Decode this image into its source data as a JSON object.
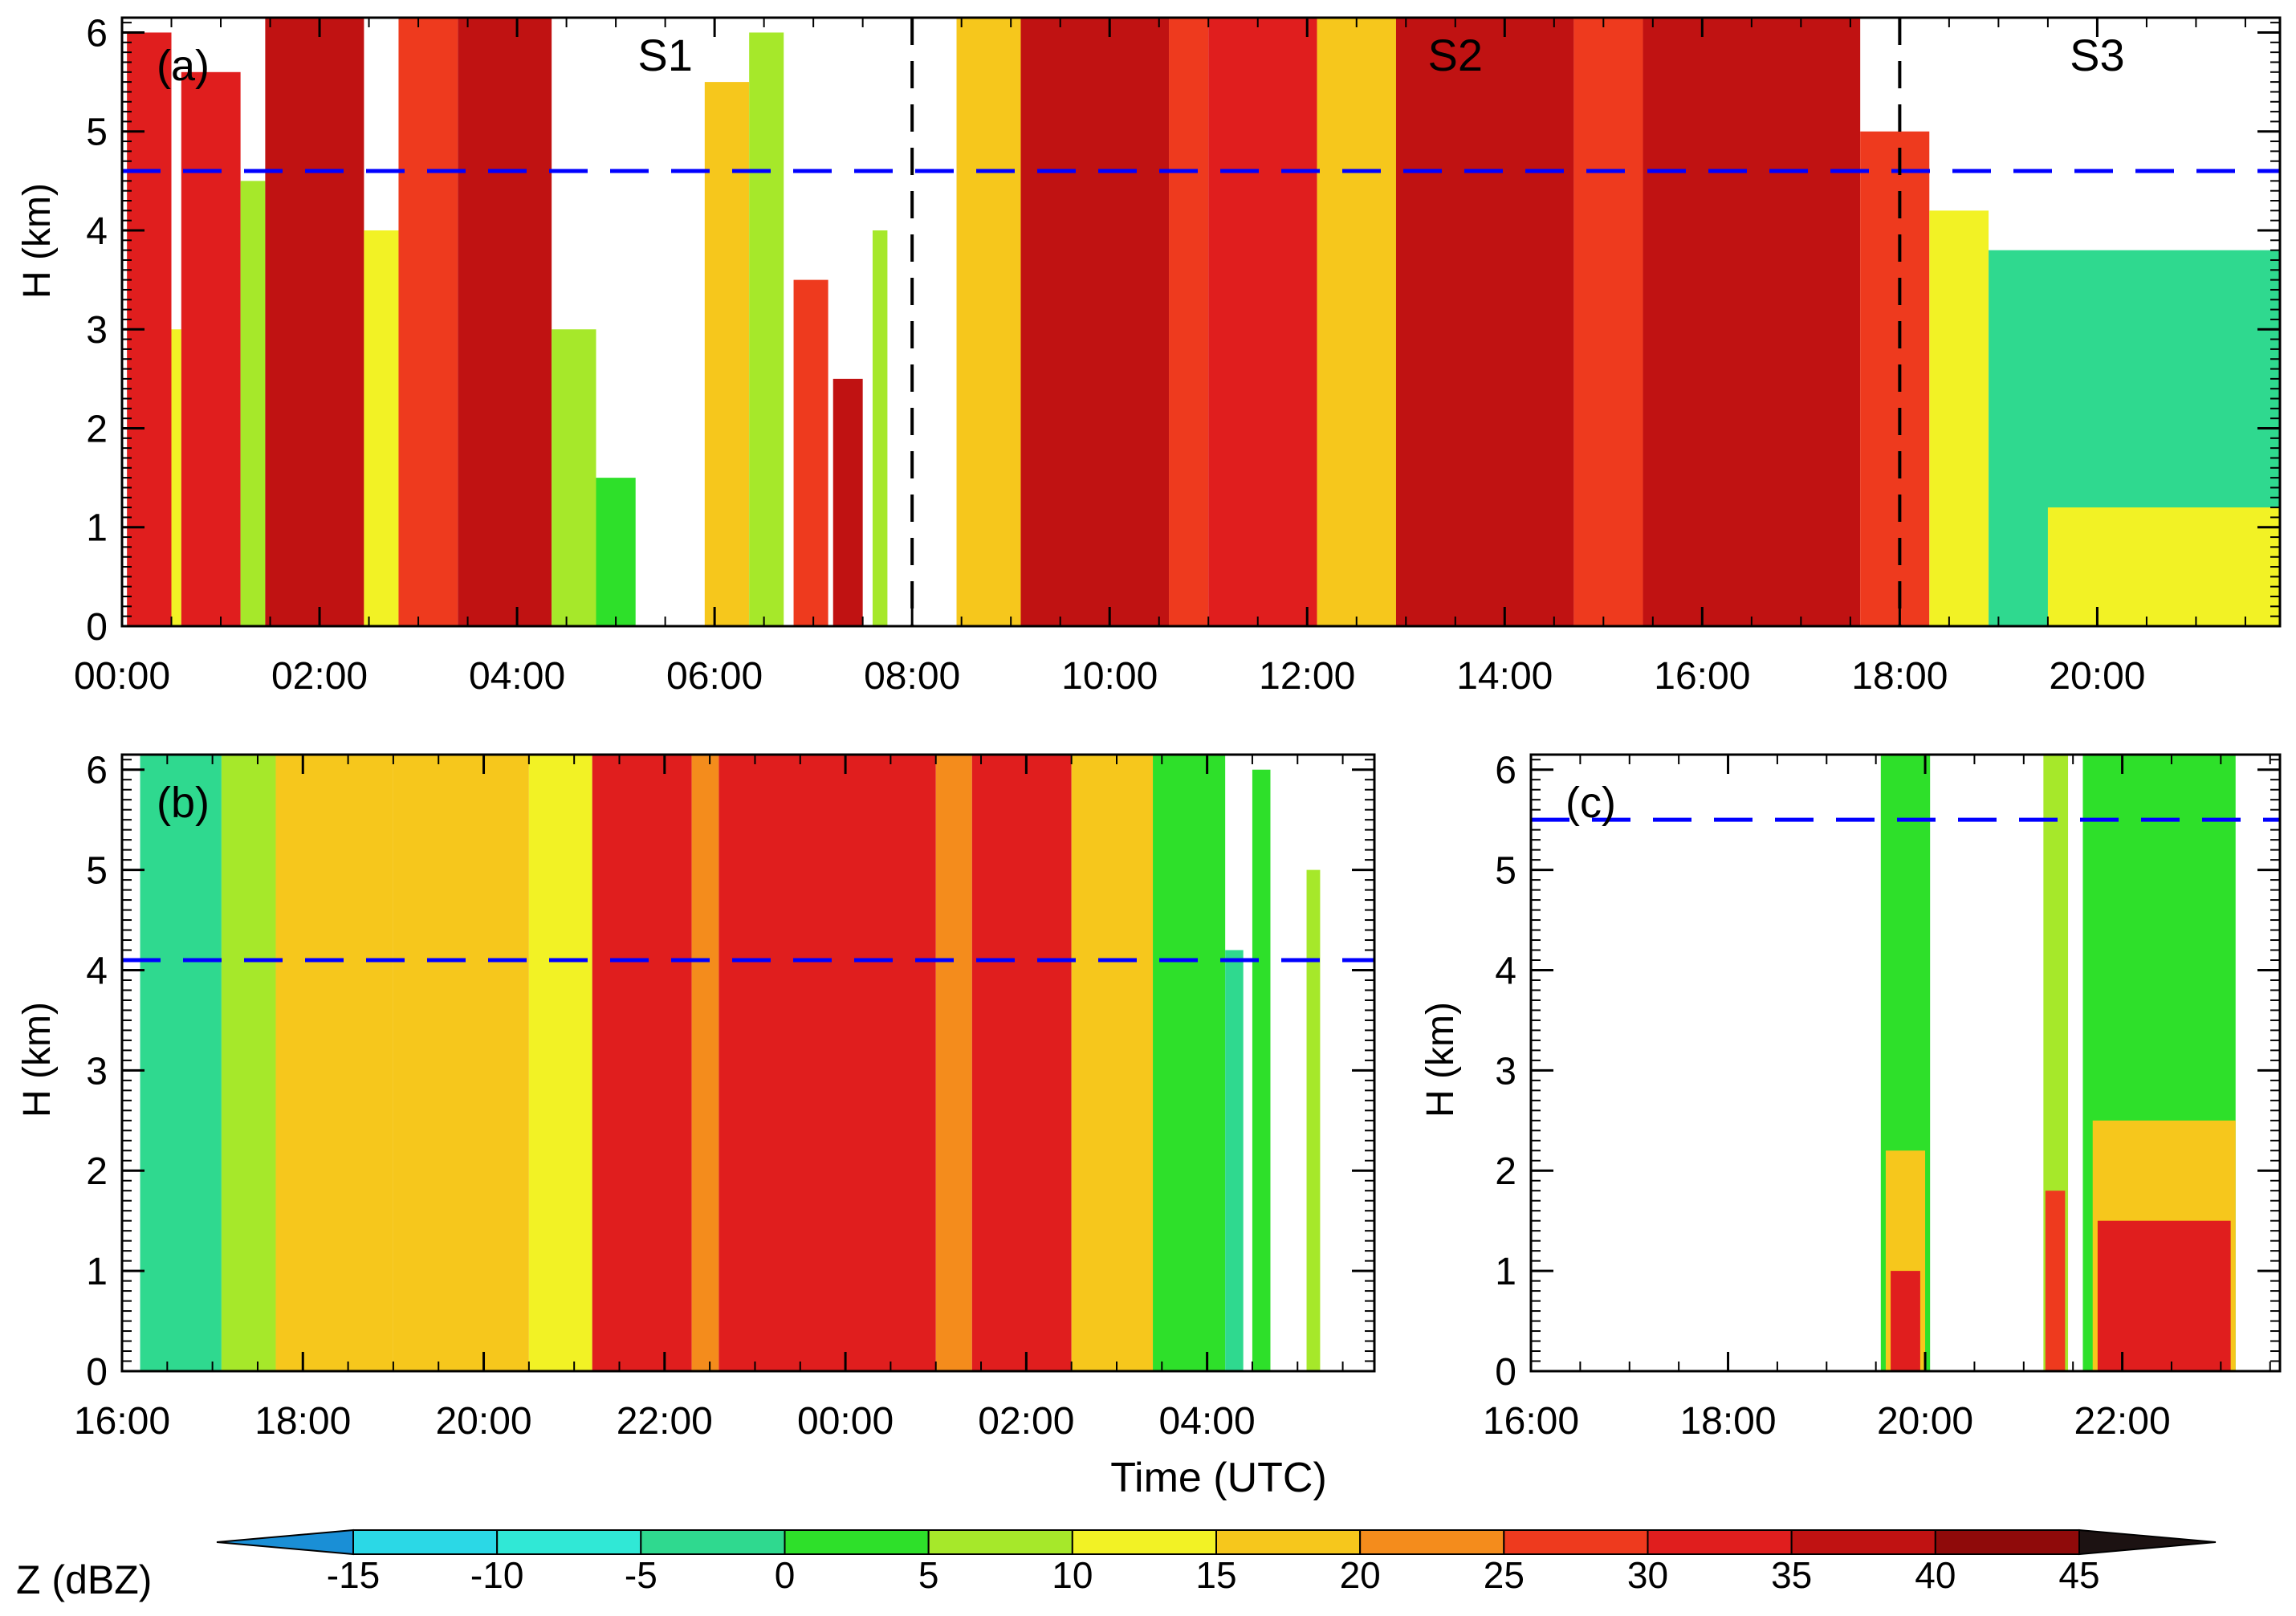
{
  "chart_data": [
    {
      "panel": "a",
      "type": "heatmap",
      "label": "(a)",
      "ylabel": "H (km)",
      "xlabel": "",
      "ylim": [
        0,
        6.15
      ],
      "yticks": [
        0,
        1,
        2,
        3,
        4,
        5,
        6
      ],
      "xlim": [
        0,
        21.85
      ],
      "xticks": [
        0,
        2,
        4,
        6,
        8,
        10,
        12,
        14,
        16,
        18,
        20
      ],
      "xtick_labels": [
        "00:00",
        "02:00",
        "04:00",
        "06:00",
        "08:00",
        "10:00",
        "12:00",
        "14:00",
        "16:00",
        "18:00",
        "20:00"
      ],
      "melting_layer_km": 4.6,
      "stage_dividers_h": [
        8,
        18
      ],
      "stages": [
        {
          "label": "S1",
          "x": 5.5
        },
        {
          "label": "S2",
          "x": 13.5
        },
        {
          "label": "S3",
          "x": 20.0
        }
      ],
      "columns": [
        {
          "t0": 0.05,
          "t1": 0.5,
          "top": 6.0,
          "dbz": 30
        },
        {
          "t0": 0.5,
          "t1": 0.6,
          "top": 3.0,
          "dbz": 10
        },
        {
          "t0": 0.6,
          "t1": 1.2,
          "top": 5.6,
          "dbz": 33
        },
        {
          "t0": 1.2,
          "t1": 1.45,
          "top": 4.5,
          "dbz": 5
        },
        {
          "t0": 1.45,
          "t1": 2.45,
          "top": 6.15,
          "dbz": 35
        },
        {
          "t0": 2.45,
          "t1": 2.8,
          "top": 4.0,
          "dbz": 12
        },
        {
          "t0": 2.8,
          "t1": 3.4,
          "top": 6.15,
          "dbz": 25
        },
        {
          "t0": 3.4,
          "t1": 4.35,
          "top": 6.15,
          "dbz": 35
        },
        {
          "t0": 4.35,
          "t1": 4.8,
          "top": 3.0,
          "dbz": 5
        },
        {
          "t0": 4.8,
          "t1": 5.2,
          "top": 1.5,
          "dbz": 0
        },
        {
          "t0": 5.9,
          "t1": 6.35,
          "top": 5.5,
          "dbz": 15
        },
        {
          "t0": 6.35,
          "t1": 6.7,
          "top": 6.0,
          "dbz": 8
        },
        {
          "t0": 6.8,
          "t1": 7.15,
          "top": 3.5,
          "dbz": 25
        },
        {
          "t0": 7.2,
          "t1": 7.5,
          "top": 2.5,
          "dbz": 35
        },
        {
          "t0": 7.6,
          "t1": 7.75,
          "top": 4.0,
          "dbz": 8
        },
        {
          "t0": 8.45,
          "t1": 9.1,
          "top": 6.15,
          "dbz": 18
        },
        {
          "t0": 9.1,
          "t1": 10.6,
          "top": 6.15,
          "dbz": 36
        },
        {
          "t0": 10.6,
          "t1": 11.0,
          "top": 6.15,
          "dbz": 25
        },
        {
          "t0": 11.0,
          "t1": 12.1,
          "top": 6.15,
          "dbz": 34
        },
        {
          "t0": 12.1,
          "t1": 12.9,
          "top": 6.15,
          "dbz": 18
        },
        {
          "t0": 12.9,
          "t1": 14.7,
          "top": 6.15,
          "dbz": 37
        },
        {
          "t0": 14.7,
          "t1": 15.4,
          "top": 6.15,
          "dbz": 25
        },
        {
          "t0": 15.4,
          "t1": 17.6,
          "top": 6.15,
          "dbz": 38
        },
        {
          "t0": 17.6,
          "t1": 18.3,
          "top": 5.0,
          "dbz": 25
        },
        {
          "t0": 18.3,
          "t1": 18.9,
          "top": 4.2,
          "dbz": 10
        },
        {
          "t0": 18.9,
          "t1": 21.85,
          "top": 3.8,
          "dbz": -5
        },
        {
          "t0": 19.5,
          "t1": 21.85,
          "top": 1.2,
          "dbz": 10
        }
      ]
    },
    {
      "panel": "b",
      "type": "heatmap",
      "label": "(b)",
      "ylabel": "H (km)",
      "xlabel": "Time (UTC)",
      "ylim": [
        0,
        6.15
      ],
      "yticks": [
        0,
        1,
        2,
        3,
        4,
        5,
        6
      ],
      "xlim": [
        16,
        29.85
      ],
      "xticks": [
        16,
        18,
        20,
        22,
        24,
        26,
        28
      ],
      "xtick_labels": [
        "16:00",
        "18:00",
        "20:00",
        "22:00",
        "00:00",
        "02:00",
        "04:00"
      ],
      "melting_layer_km": 4.1,
      "stage_dividers_h": [],
      "stages": [],
      "columns": [
        {
          "t0": 16.2,
          "t1": 17.1,
          "top": 6.15,
          "dbz": -2
        },
        {
          "t0": 17.1,
          "t1": 17.7,
          "top": 6.15,
          "dbz": 5
        },
        {
          "t0": 17.7,
          "t1": 19.0,
          "top": 6.15,
          "dbz": 18
        },
        {
          "t0": 19.0,
          "t1": 20.5,
          "top": 6.15,
          "dbz": 16
        },
        {
          "t0": 20.5,
          "t1": 21.2,
          "top": 6.15,
          "dbz": 14
        },
        {
          "t0": 21.2,
          "t1": 22.3,
          "top": 6.15,
          "dbz": 32
        },
        {
          "t0": 22.3,
          "t1": 22.6,
          "top": 6.15,
          "dbz": 24
        },
        {
          "t0": 22.6,
          "t1": 25.0,
          "top": 6.15,
          "dbz": 34
        },
        {
          "t0": 25.0,
          "t1": 25.4,
          "top": 6.15,
          "dbz": 24
        },
        {
          "t0": 25.4,
          "t1": 26.5,
          "top": 6.15,
          "dbz": 32
        },
        {
          "t0": 26.5,
          "t1": 27.4,
          "top": 6.15,
          "dbz": 15
        },
        {
          "t0": 27.4,
          "t1": 28.2,
          "top": 6.15,
          "dbz": 4
        },
        {
          "t0": 28.2,
          "t1": 28.4,
          "top": 4.2,
          "dbz": -3
        },
        {
          "t0": 28.5,
          "t1": 28.7,
          "top": 6.0,
          "dbz": 2
        },
        {
          "t0": 29.1,
          "t1": 29.25,
          "top": 5.0,
          "dbz": 8
        }
      ]
    },
    {
      "panel": "c",
      "type": "heatmap",
      "label": "(c)",
      "ylabel": "H (km)",
      "xlabel": "",
      "ylim": [
        0,
        6.15
      ],
      "yticks": [
        0,
        1,
        2,
        3,
        4,
        5,
        6
      ],
      "xlim": [
        16,
        23.6
      ],
      "xticks": [
        16,
        18,
        20,
        22
      ],
      "xtick_labels": [
        "16:00",
        "18:00",
        "20:00",
        "22:00"
      ],
      "melting_layer_km": 5.5,
      "stage_dividers_h": [],
      "stages": [],
      "columns": [
        {
          "t0": 19.55,
          "t1": 20.05,
          "top": 6.15,
          "dbz": 3
        },
        {
          "t0": 19.6,
          "t1": 20.0,
          "top": 2.2,
          "dbz": 15
        },
        {
          "t0": 19.65,
          "t1": 19.95,
          "top": 1.0,
          "dbz": 32
        },
        {
          "t0": 21.2,
          "t1": 21.45,
          "top": 6.15,
          "dbz": 5
        },
        {
          "t0": 21.22,
          "t1": 21.42,
          "top": 1.8,
          "dbz": 25
        },
        {
          "t0": 21.6,
          "t1": 23.15,
          "top": 6.15,
          "dbz": 2
        },
        {
          "t0": 21.7,
          "t1": 23.15,
          "top": 2.5,
          "dbz": 18
        },
        {
          "t0": 21.75,
          "t1": 23.1,
          "top": 1.5,
          "dbz": 32
        }
      ]
    }
  ],
  "colorbar": {
    "label": "Z (dBZ)",
    "tick_labels": [
      "-15",
      "-10",
      "-5",
      "0",
      "5",
      "10",
      "15",
      "20",
      "25",
      "30",
      "35",
      "40",
      "45"
    ],
    "levels": [
      -20,
      -15,
      -10,
      -5,
      0,
      5,
      10,
      15,
      20,
      25,
      30,
      35,
      40,
      45,
      50
    ],
    "colors": [
      "#1a8fd6",
      "#2bd8e6",
      "#30e8d6",
      "#2fd98f",
      "#2ee02a",
      "#a6e82a",
      "#f2f225",
      "#f6c71c",
      "#f48c1c",
      "#ee3a1e",
      "#e01e1e",
      "#c01212",
      "#8f0a0a",
      "#1c1212"
    ]
  }
}
